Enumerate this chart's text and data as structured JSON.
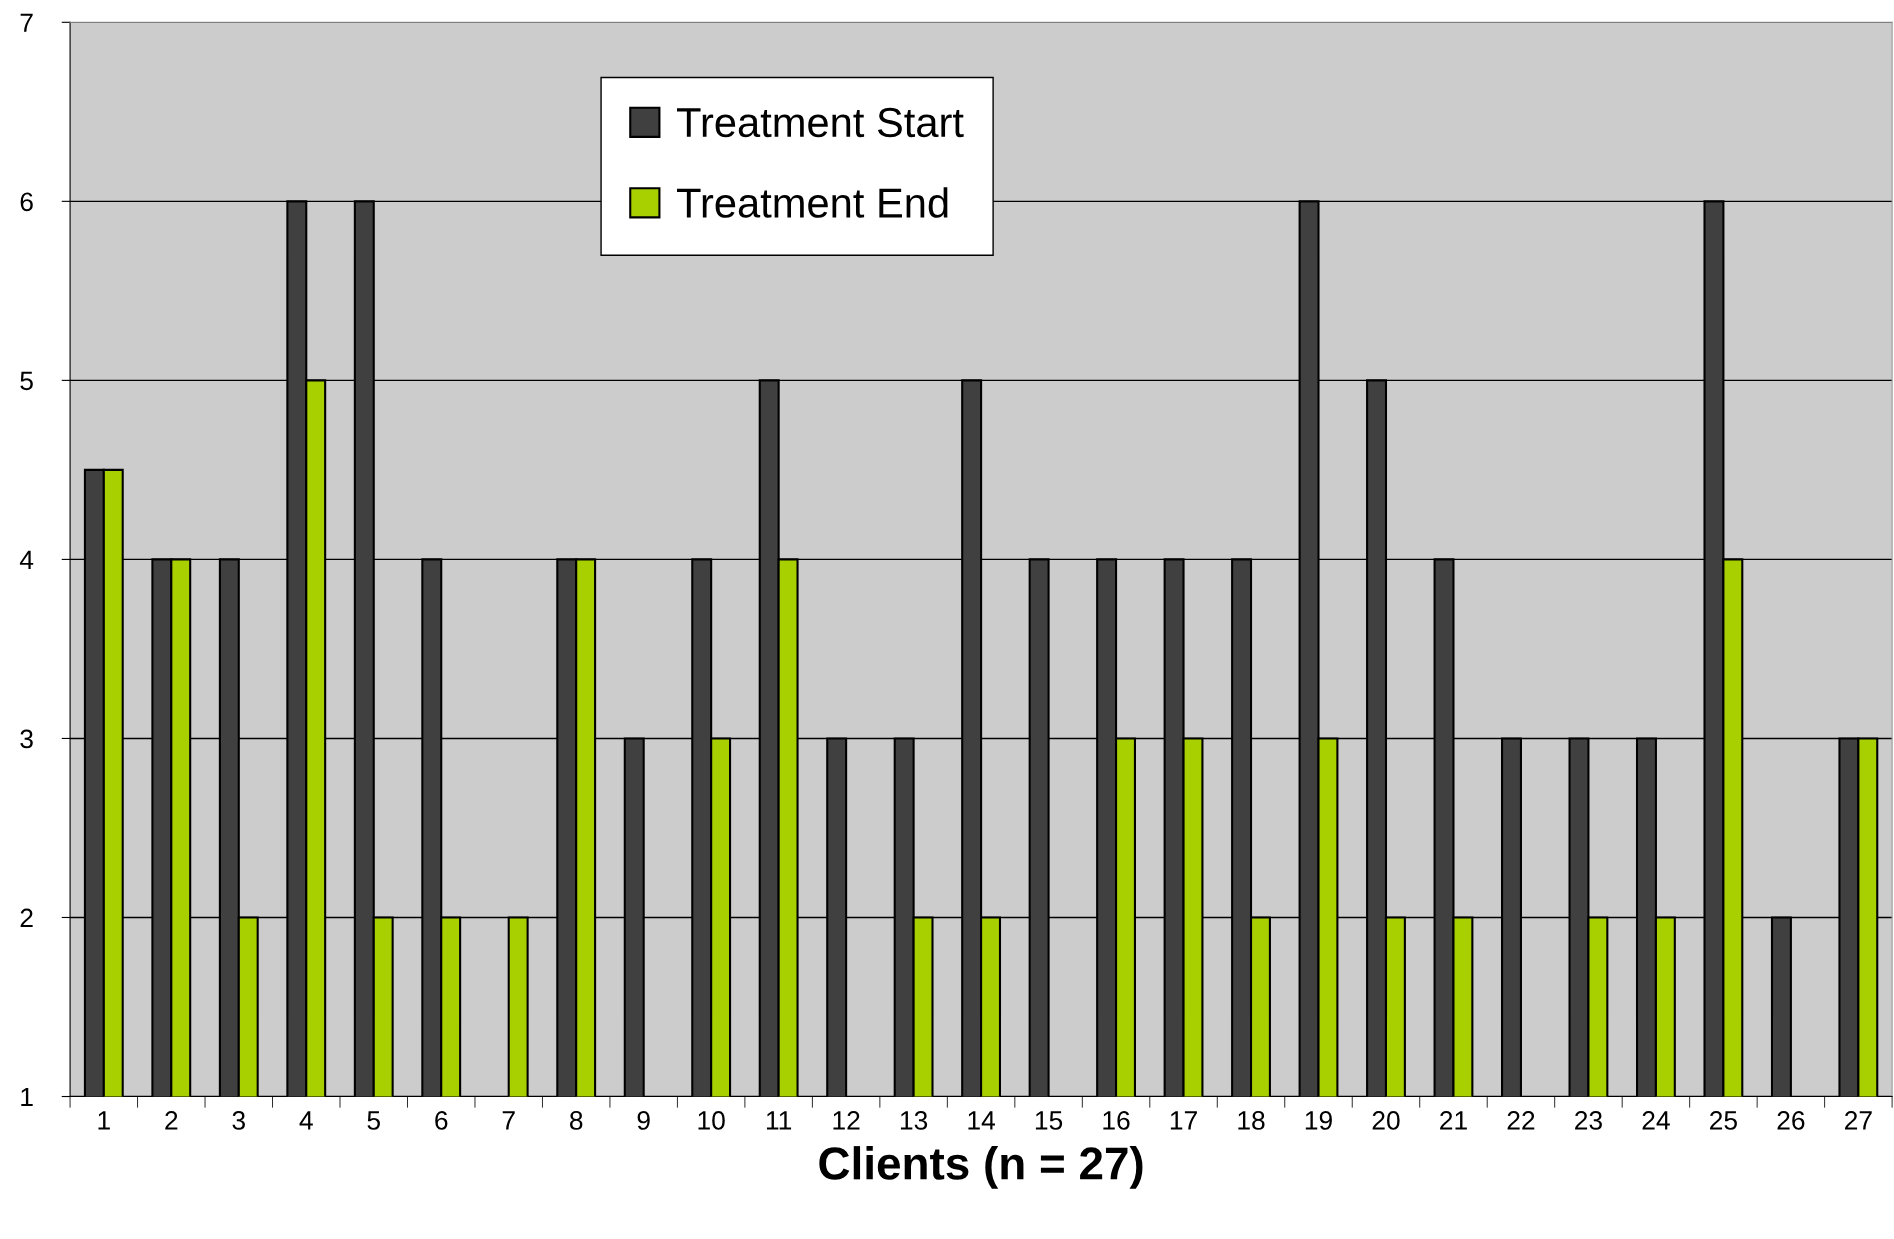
{
  "chart_data": {
    "type": "bar",
    "xlabel": "Clients (n = 27)",
    "categories": [
      "1",
      "2",
      "3",
      "4",
      "5",
      "6",
      "7",
      "8",
      "9",
      "10",
      "11",
      "12",
      "13",
      "14",
      "15",
      "16",
      "17",
      "18",
      "19",
      "20",
      "21",
      "22",
      "23",
      "24",
      "25",
      "26",
      "27"
    ],
    "series": [
      {
        "name": "Treatment Start",
        "color": "#404040",
        "values": [
          4.5,
          4,
          4,
          6,
          6,
          4,
          null,
          4,
          3,
          4,
          5,
          3,
          3,
          5,
          4,
          4,
          4,
          4,
          6,
          5,
          4,
          3,
          3,
          3,
          6,
          2,
          3
        ]
      },
      {
        "name": "Treatment End",
        "color": "#a8d000",
        "values": [
          4.5,
          4,
          2,
          5,
          2,
          2,
          2,
          4,
          null,
          3,
          4,
          null,
          2,
          2,
          null,
          3,
          3,
          2,
          3,
          2,
          2,
          null,
          2,
          2,
          4,
          null,
          3
        ]
      }
    ],
    "ylim": [
      1,
      7
    ],
    "yticks": [
      1,
      2,
      3,
      4,
      5,
      6,
      7
    ],
    "grid": "y",
    "legend": "top"
  }
}
